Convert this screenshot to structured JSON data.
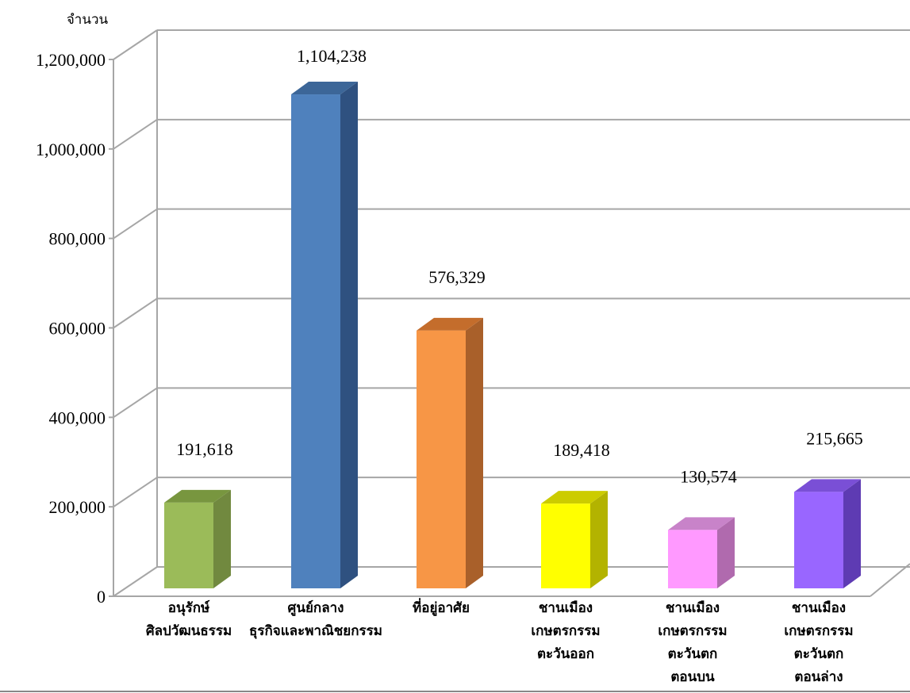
{
  "chart_data": {
    "type": "bar",
    "title": "",
    "xlabel": "",
    "ylabel": "จำนวน",
    "ylim": [
      0,
      1200000
    ],
    "yticks": [
      "0",
      "200,000",
      "400,000",
      "600,000",
      "800,000",
      "1,000,000",
      "1,200,000"
    ],
    "grid": true,
    "three_d": true,
    "categories": [
      {
        "lines": [
          "อนุรักษ์",
          "ศิลปวัฒนธรรม"
        ]
      },
      {
        "lines": [
          "ศูนย์กลาง",
          "ธุรกิจและพาณิชยกรรม"
        ]
      },
      {
        "lines": [
          "ที่อยู่อาศัย"
        ]
      },
      {
        "lines": [
          "ชานเมือง",
          "เกษตรกรรม",
          "ตะวันออก"
        ]
      },
      {
        "lines": [
          "ชานเมือง",
          "เกษตรกรรม",
          "ตะวันตก",
          "ตอนบน"
        ]
      },
      {
        "lines": [
          "ชานเมือง",
          "เกษตรกรรม",
          "ตะวันตก",
          "ตอนล่าง"
        ]
      }
    ],
    "values": [
      191618,
      1104238,
      576329,
      189418,
      130574,
      215665
    ],
    "value_labels": [
      "191,618",
      "1,104,238",
      "576,329",
      "189,418",
      "130,574",
      "215,665"
    ],
    "colors": [
      {
        "front": "#9bbb59",
        "side": "#71893f",
        "top": "#78963f"
      },
      {
        "front": "#4f81bd",
        "side": "#2f5180",
        "top": "#3c6698"
      },
      {
        "front": "#f79646",
        "side": "#a9602a",
        "top": "#c46d2c"
      },
      {
        "front": "#ffff00",
        "side": "#b3b300",
        "top": "#cccc00"
      },
      {
        "front": "#ff99ff",
        "side": "#b06aae",
        "top": "#c883c9"
      },
      {
        "front": "#9966ff",
        "side": "#5e3bb3",
        "top": "#7a4fd6"
      }
    ],
    "grid_color": "#a6a6a6"
  }
}
